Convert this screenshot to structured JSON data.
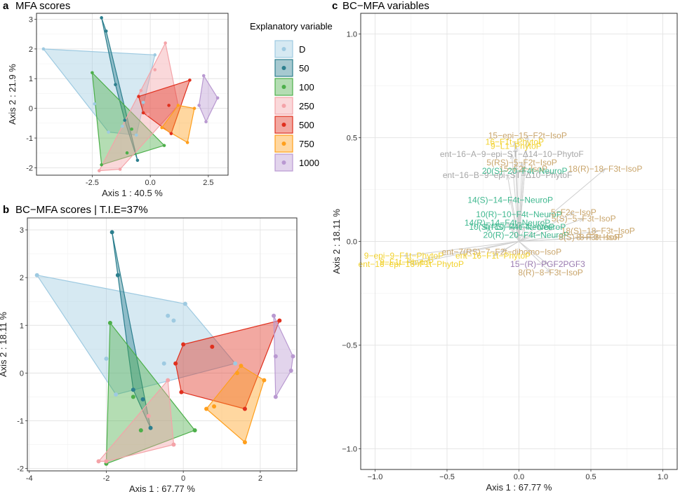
{
  "figure": {
    "panel_a": {
      "letter": "a",
      "title": "MFA scores"
    },
    "panel_b": {
      "letter": "b",
      "title": "BC−MFA scores | T.I.E=37%"
    },
    "panel_c": {
      "letter": "c",
      "title": "BC−MFA variables"
    }
  },
  "legend": {
    "title": "Explanatory variable",
    "items": [
      {
        "label": "D",
        "color": "#9ecae1"
      },
      {
        "label": "50",
        "color": "#2c7f8e"
      },
      {
        "label": "100",
        "color": "#4daf4a"
      },
      {
        "label": "250",
        "color": "#f4a3a8"
      },
      {
        "label": "500",
        "color": "#e0301e"
      },
      {
        "label": "750",
        "color": "#ff9f1c"
      },
      {
        "label": "1000",
        "color": "#b999d1"
      }
    ]
  },
  "chart_data": [
    {
      "id": "mfa",
      "type": "scatter",
      "title": "MFA scores",
      "xlabel": "Axis  1  :  40.5 %",
      "ylabel": "Axis  2  :  21.9 %",
      "xlim": [
        -4.9,
        3.35
      ],
      "ylim": [
        -2.25,
        3.2
      ],
      "xticks": [
        -2.5,
        0.0,
        2.5
      ],
      "xtick_labels": [
        "-2.5",
        "0.0",
        "2.5"
      ],
      "yticks": [
        -2,
        -1,
        0,
        1,
        2,
        3
      ],
      "ytick_labels": [
        "-2",
        "-1",
        "0",
        "1",
        "2",
        "3"
      ],
      "hull_groups": [
        {
          "name": "D",
          "points": [
            [
              -4.6,
              2.0
            ],
            [
              0.2,
              1.8
            ],
            [
              -0.6,
              -0.9
            ],
            [
              -2.4,
              0.15
            ],
            [
              -1.8,
              -0.8
            ],
            [
              -0.3,
              0.2
            ],
            [
              -1.2,
              -0.6
            ]
          ]
        },
        {
          "name": "50",
          "points": [
            [
              -2.1,
              3.05
            ],
            [
              -1.9,
              2.6
            ],
            [
              -0.55,
              -1.75
            ],
            [
              -1.1,
              -0.4
            ],
            [
              -1.5,
              0.8
            ]
          ]
        },
        {
          "name": "100",
          "points": [
            [
              -2.5,
              1.2
            ],
            [
              0.6,
              -1.25
            ],
            [
              -2.1,
              -1.9
            ],
            [
              -1.0,
              -1.5
            ],
            [
              -0.8,
              -0.7
            ]
          ]
        },
        {
          "name": "250",
          "points": [
            [
              0.65,
              2.2
            ],
            [
              1.2,
              0.1
            ],
            [
              -1.3,
              -2.05
            ],
            [
              -2.2,
              -2.1
            ],
            [
              -0.4,
              0.6
            ],
            [
              0.2,
              1.3
            ],
            [
              -0.1,
              -0.2
            ]
          ]
        },
        {
          "name": "500",
          "points": [
            [
              -0.5,
              0.4
            ],
            [
              1.7,
              0.95
            ],
            [
              0.9,
              -0.85
            ],
            [
              -0.3,
              -0.15
            ],
            [
              0.8,
              0.1
            ]
          ]
        },
        {
          "name": "750",
          "points": [
            [
              0.5,
              -0.65
            ],
            [
              1.6,
              -1.15
            ],
            [
              1.9,
              0.0
            ],
            [
              1.2,
              0.1
            ]
          ]
        },
        {
          "name": "1000",
          "points": [
            [
              2.3,
              1.1
            ],
            [
              2.9,
              0.35
            ],
            [
              2.4,
              -0.45
            ],
            [
              2.1,
              0.1
            ]
          ]
        }
      ]
    },
    {
      "id": "bcmfa_scores",
      "type": "scatter",
      "title": "BC−MFA scores | T.I.E=37%",
      "xlabel": "Axis  1  :  67.77 %",
      "ylabel": "Axis  2  :  18.11 %",
      "xlim": [
        -4.05,
        2.95
      ],
      "ylim": [
        -2.05,
        3.25
      ],
      "xticks": [
        -4,
        -2,
        0,
        2
      ],
      "xtick_labels": [
        "-4",
        "-2",
        "0",
        "2"
      ],
      "yticks": [
        -2,
        -1,
        0,
        1,
        2,
        3
      ],
      "ytick_labels": [
        "-2",
        "-1",
        "0",
        "1",
        "2",
        "3"
      ],
      "hull_groups": [
        {
          "name": "D",
          "points": [
            [
              -3.8,
              2.05
            ],
            [
              0.05,
              1.45
            ],
            [
              1.35,
              0.2
            ],
            [
              -1.75,
              -0.45
            ],
            [
              -0.4,
              1.2
            ],
            [
              -0.25,
              1.1
            ],
            [
              -2.0,
              0.3
            ],
            [
              -0.5,
              0.2
            ]
          ]
        },
        {
          "name": "50",
          "points": [
            [
              -1.85,
              2.95
            ],
            [
              -1.7,
              2.05
            ],
            [
              -0.85,
              -1.15
            ],
            [
              -1.3,
              -0.35
            ],
            [
              -1.05,
              -0.55
            ]
          ]
        },
        {
          "name": "100",
          "points": [
            [
              -1.9,
              1.05
            ],
            [
              0.3,
              -1.2
            ],
            [
              -2.0,
              -1.9
            ],
            [
              -1.1,
              -1.2
            ],
            [
              -1.3,
              -0.5
            ]
          ]
        },
        {
          "name": "250",
          "points": [
            [
              -0.4,
              -0.15
            ],
            [
              -0.25,
              -1.5
            ],
            [
              -2.2,
              -1.85
            ],
            [
              -2.0,
              -1.85
            ],
            [
              -0.9,
              -0.9
            ]
          ]
        },
        {
          "name": "500",
          "points": [
            [
              0.0,
              0.6
            ],
            [
              2.5,
              1.1
            ],
            [
              1.6,
              -0.75
            ],
            [
              -0.2,
              0.2
            ],
            [
              0.75,
              0.55
            ],
            [
              -0.05,
              -0.4
            ]
          ]
        },
        {
          "name": "750",
          "points": [
            [
              1.5,
              0.15
            ],
            [
              2.1,
              -0.15
            ],
            [
              1.6,
              -1.45
            ],
            [
              0.6,
              -0.75
            ],
            [
              0.8,
              -0.7
            ],
            [
              1.4,
              0.0
            ]
          ]
        },
        {
          "name": "1000",
          "points": [
            [
              2.35,
              1.2
            ],
            [
              2.85,
              0.35
            ],
            [
              2.8,
              0.05
            ],
            [
              2.4,
              -0.5
            ],
            [
              2.4,
              0.35
            ]
          ]
        }
      ]
    },
    {
      "id": "bcmfa_variables",
      "type": "scatter",
      "title": "BC−MFA variables",
      "xlabel": "Axis  1  :  67.77 %",
      "ylabel": "Axis  2  :  18.11 %",
      "xlim": [
        -1.1,
        1.1
      ],
      "ylim": [
        -1.1,
        1.1
      ],
      "xticks": [
        -1.0,
        -0.5,
        0.0,
        0.5,
        1.0
      ],
      "xtick_labels": [
        "−1.0",
        "−0.5",
        "0.0",
        "0.5",
        "1.0"
      ],
      "yticks": [
        -1.0,
        -0.5,
        0.0,
        0.5,
        1.0
      ],
      "ytick_labels": [
        "−1.0",
        "−0.5",
        "0.0",
        "0.5",
        "1.0"
      ],
      "variables": [
        {
          "label": "15−epi−15−F2t−IsoP",
          "x": 0.06,
          "y": 0.51,
          "group": "Isoprostanes"
        },
        {
          "label": "9−L1−PhytoP",
          "x": -0.02,
          "y": 0.46,
          "group": "Phytoprostanes"
        },
        {
          "label": "16−F1t−PhytoP",
          "x": -0.03,
          "y": 0.48,
          "group": "Phytoprostanes"
        },
        {
          "label": "ent−16−A−9−epi−ST−Δ14−10−PhytoF",
          "x": -0.05,
          "y": 0.42,
          "group": "Phytofurans"
        },
        {
          "label": "5(RS)−5−F2t−IsoP",
          "x": 0.02,
          "y": 0.38,
          "group": "Isoprostanes"
        },
        {
          "label": "15−F2t−IsoP",
          "x": 0.03,
          "y": 0.35,
          "group": "Isoprostanes"
        },
        {
          "label": "18(R)−18−F3t−IsoP",
          "x": 0.6,
          "y": 0.35,
          "group": "Isoprostanes"
        },
        {
          "label": "ent−16−B−9−epi−ST−Δ10−PhytoF",
          "x": -0.08,
          "y": 0.32,
          "group": "Phytofurans"
        },
        {
          "label": "20(S)−20−F4t−NeuroP",
          "x": 0.04,
          "y": 0.34,
          "group": "Neuroprostanes"
        },
        {
          "label": "14(S)−14−F4t−NeuroP",
          "x": -0.06,
          "y": 0.2,
          "group": "Neuroprostanes"
        },
        {
          "label": "10(R)−10−F4t−NeuroP",
          "x": 0.0,
          "y": 0.13,
          "group": "Neuroprostanes"
        },
        {
          "label": "14(R)−14−F4t−NeuroP",
          "x": -0.08,
          "y": 0.09,
          "group": "Neuroprostanes"
        },
        {
          "label": "10(S)−10−F4t−NeuroP",
          "x": -0.05,
          "y": 0.07,
          "group": "Neuroprostanes"
        },
        {
          "label": "4(RS)−4−F4t−NeuroP",
          "x": 0.04,
          "y": 0.07,
          "group": "Neuroprostanes"
        },
        {
          "label": "20(R)−20−F4t−NeuroP",
          "x": 0.05,
          "y": 0.03,
          "group": "Neuroprostanes"
        },
        {
          "label": "5−F2c−IsoP",
          "x": 0.38,
          "y": 0.14,
          "group": "Isoprostanes"
        },
        {
          "label": "5(S)−5−F3t−IsoP",
          "x": 0.45,
          "y": 0.11,
          "group": "Isoprostanes"
        },
        {
          "label": "18(S)−18−F3t−IsoP",
          "x": 0.55,
          "y": 0.05,
          "group": "Isoprostanes"
        },
        {
          "label": "8(S)−8−F3t−IsoP",
          "x": 0.5,
          "y": 0.02,
          "group": "Isoprostanes"
        },
        {
          "label": "8−F3t−IsoP",
          "x": 0.55,
          "y": 0.02,
          "group": "Isoprostanes"
        },
        {
          "label": "ent−7(RS)−7−F2t−dihomo−IsoP",
          "x": -0.12,
          "y": -0.05,
          "group": "Isoprostanes"
        },
        {
          "label": "9−epi−9−F1t−PhytoP",
          "x": -0.8,
          "y": -0.07,
          "group": "Phytoprostanes"
        },
        {
          "label": "ent−16−F1t−PhytoP",
          "x": -0.18,
          "y": -0.07,
          "group": "Phytoprostanes"
        },
        {
          "label": "9−F1t−PhytoP",
          "x": -0.78,
          "y": -0.1,
          "group": "Phytoprostanes"
        },
        {
          "label": "ent−16−epi−16−F1t−PhytoP",
          "x": -0.75,
          "y": -0.11,
          "group": "Phytoprostanes"
        },
        {
          "label": "15−(R)−PGF2PGF3",
          "x": 0.2,
          "y": -0.11,
          "group": "Prostaglandins"
        },
        {
          "label": "8(R)−8−F3t−IsoP",
          "x": 0.22,
          "y": -0.15,
          "group": "Isoprostanes"
        }
      ],
      "group_colors": {
        "Isoprostanes": "#c9a56b",
        "Phytoprostanes": "#f2d22e",
        "Phytofurans": "#a6a6a6",
        "Neuroprostanes": "#3fb88f",
        "Prostaglandins": "#9a7bb0"
      }
    }
  ]
}
